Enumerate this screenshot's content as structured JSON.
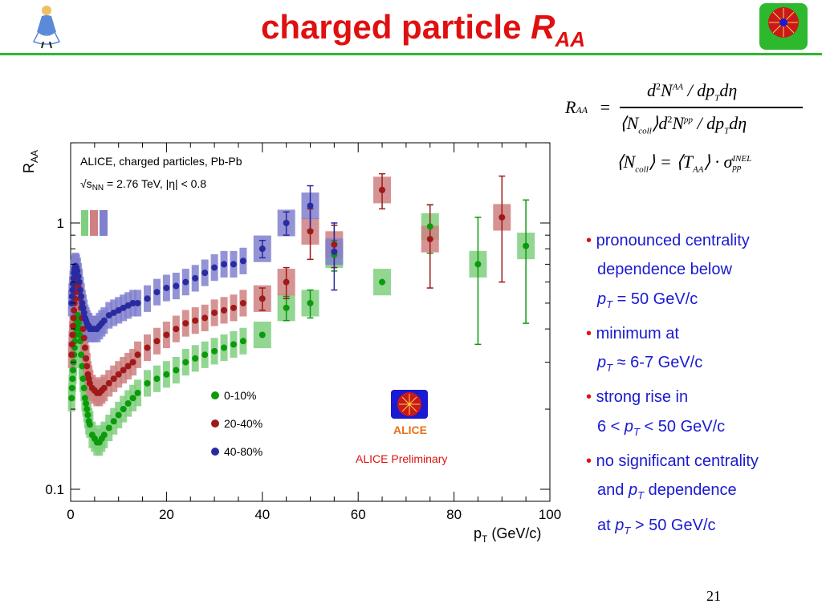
{
  "slide": {
    "title_main": "charged particle ",
    "title_r": "R",
    "title_sub": "AA",
    "page_number": "21"
  },
  "formula": {
    "lhs_R": "R",
    "lhs_sub": "AA",
    "eq": "=",
    "num_d": "d",
    "num_sup2": "2",
    "num_N": "N",
    "num_supAA": "AA",
    "num_rest": "/ dp",
    "num_subT": "T",
    "num_end": "dη",
    "den_open": "⟨N",
    "den_subcoll": "coll",
    "den_close": "⟩d",
    "den_sup2": "2",
    "den_N": "N",
    "den_suppp": "pp",
    "den_rest": "/ dp",
    "den_subT": "T",
    "den_end": "dη",
    "ncoll_open": "⟨N",
    "ncoll_sub": "coll",
    "ncoll_mid": "⟩ = ⟨T",
    "taa_sub": "AA",
    "taa_end": "⟩ · σ",
    "sigma_sup": "INEL",
    "sigma_sub": "pp"
  },
  "bullets": [
    {
      "bullet": "•",
      "text": " pronounced centrality"
    },
    {
      "indent": "dependence below"
    },
    {
      "indent_p": "p",
      "indent_sub": "T",
      "indent_rest": " = 50 GeV/c"
    },
    {
      "bullet": "•",
      "text": " minimum at"
    },
    {
      "indent_p": "p",
      "indent_sub": "T",
      "indent_rest": " ≈ 6-7 GeV/c"
    },
    {
      "bullet": "•",
      "text": " strong rise in"
    },
    {
      "indent_pre": "6 < ",
      "indent_p": "p",
      "indent_sub": "T",
      "indent_rest": " < 50 GeV/c"
    },
    {
      "bullet": "•",
      "text": " no significant centrality"
    },
    {
      "indent_pre": "and ",
      "indent_p": "p",
      "indent_sub": "T",
      "indent_rest": " dependence"
    },
    {
      "indent_pre": "at ",
      "indent_p": "p",
      "indent_sub": "T",
      "indent_rest": " > 50 GeV/c"
    }
  ],
  "chart_data": {
    "type": "scatter",
    "yscale": "log",
    "xlim": [
      0,
      100
    ],
    "ylim": [
      0.1,
      2.0
    ],
    "grid": false,
    "legend_position": "bottom-center",
    "xlabel": "p",
    "xlabel_sub": "T",
    "xlabel_unit": " (GeV/c)",
    "ylabel": "R",
    "ylabel_sub": "AA",
    "header_line1": "ALICE, charged particles, Pb-Pb",
    "header_line2_s": "√s",
    "header_line2_sub": "NN",
    "header_line2_rest": " = 2.76 TeV, |η| < 0.8",
    "preliminary": "ALICE Preliminary",
    "logo_text": "ALICE",
    "xticks": [
      "0",
      "20",
      "40",
      "60",
      "80",
      "100"
    ],
    "yticks": [
      "0.1",
      "1"
    ],
    "series": [
      {
        "name": "0-10%",
        "color": "#0a9a0a",
        "band": "#7fcf7f",
        "x": [
          0.2,
          0.3,
          0.4,
          0.5,
          0.6,
          0.7,
          0.8,
          0.9,
          1.0,
          1.1,
          1.2,
          1.3,
          1.4,
          1.5,
          1.6,
          1.7,
          1.8,
          1.9,
          2.0,
          2.2,
          2.4,
          2.6,
          2.8,
          3.0,
          3.2,
          3.4,
          3.6,
          3.8,
          4.0,
          4.5,
          5.0,
          5.5,
          6.0,
          6.5,
          7.0,
          8.0,
          9.0,
          10,
          11,
          12,
          13,
          14,
          16,
          18,
          20,
          22,
          24,
          26,
          28,
          30,
          32,
          34,
          36,
          40,
          45,
          50,
          55,
          65,
          75,
          85,
          95
        ],
        "y": [
          0.22,
          0.24,
          0.26,
          0.28,
          0.3,
          0.32,
          0.34,
          0.36,
          0.38,
          0.4,
          0.42,
          0.44,
          0.45,
          0.45,
          0.44,
          0.42,
          0.4,
          0.38,
          0.36,
          0.32,
          0.29,
          0.26,
          0.24,
          0.22,
          0.21,
          0.2,
          0.19,
          0.18,
          0.175,
          0.16,
          0.155,
          0.15,
          0.15,
          0.155,
          0.16,
          0.17,
          0.18,
          0.19,
          0.2,
          0.21,
          0.22,
          0.23,
          0.25,
          0.26,
          0.27,
          0.28,
          0.3,
          0.31,
          0.32,
          0.33,
          0.34,
          0.35,
          0.36,
          0.38,
          0.48,
          0.5,
          0.76,
          0.6,
          0.97,
          0.7,
          0.82
        ],
        "err": [
          0,
          0,
          0,
          0,
          0,
          0,
          0,
          0,
          0,
          0,
          0,
          0,
          0,
          0,
          0,
          0,
          0,
          0,
          0,
          0,
          0,
          0,
          0,
          0,
          0,
          0,
          0,
          0,
          0,
          0,
          0,
          0,
          0,
          0,
          0,
          0,
          0,
          0,
          0,
          0,
          0,
          0,
          0,
          0,
          0,
          0,
          0,
          0,
          0,
          0,
          0,
          0,
          0,
          0,
          0.05,
          0.06,
          0.1,
          0,
          0.2,
          0.35,
          0.4
        ]
      },
      {
        "name": "20-40%",
        "color": "#9e1a1a",
        "band": "#cf8080",
        "x": [
          0.2,
          0.3,
          0.4,
          0.5,
          0.6,
          0.7,
          0.8,
          0.9,
          1.0,
          1.2,
          1.4,
          1.6,
          1.8,
          2.0,
          2.2,
          2.4,
          2.6,
          2.8,
          3.0,
          3.2,
          3.4,
          3.6,
          3.8,
          4.0,
          4.5,
          5.0,
          5.5,
          6.0,
          6.5,
          7.0,
          8.0,
          9.0,
          10,
          11,
          12,
          13,
          14,
          16,
          18,
          20,
          22,
          24,
          26,
          28,
          30,
          32,
          34,
          36,
          40,
          45,
          50,
          55,
          65,
          75,
          90
        ],
        "y": [
          0.32,
          0.35,
          0.38,
          0.41,
          0.44,
          0.47,
          0.5,
          0.52,
          0.55,
          0.58,
          0.6,
          0.58,
          0.55,
          0.52,
          0.48,
          0.44,
          0.4,
          0.37,
          0.34,
          0.31,
          0.29,
          0.27,
          0.26,
          0.25,
          0.24,
          0.235,
          0.23,
          0.23,
          0.235,
          0.24,
          0.25,
          0.26,
          0.27,
          0.28,
          0.29,
          0.3,
          0.32,
          0.34,
          0.36,
          0.38,
          0.4,
          0.42,
          0.43,
          0.44,
          0.46,
          0.47,
          0.48,
          0.5,
          0.52,
          0.6,
          0.93,
          0.83,
          1.33,
          0.87,
          1.05
        ],
        "err": [
          0,
          0,
          0,
          0,
          0,
          0,
          0,
          0,
          0,
          0,
          0,
          0,
          0,
          0,
          0,
          0,
          0,
          0,
          0,
          0,
          0,
          0,
          0,
          0,
          0,
          0,
          0,
          0,
          0,
          0,
          0,
          0,
          0,
          0,
          0,
          0,
          0,
          0,
          0,
          0,
          0,
          0,
          0,
          0,
          0,
          0,
          0,
          0,
          0.05,
          0.08,
          0.2,
          0.15,
          0.2,
          0.3,
          0.45
        ]
      },
      {
        "name": "40-80%",
        "color": "#2a2aa0",
        "band": "#8080cf",
        "x": [
          0.2,
          0.3,
          0.4,
          0.5,
          0.6,
          0.7,
          0.8,
          0.9,
          1.0,
          1.2,
          1.4,
          1.6,
          1.8,
          2.0,
          2.2,
          2.4,
          2.6,
          2.8,
          3.0,
          3.2,
          3.4,
          3.6,
          3.8,
          4.0,
          4.5,
          5.0,
          5.5,
          6.0,
          6.5,
          7.0,
          8.0,
          9.0,
          10,
          11,
          12,
          13,
          14,
          16,
          18,
          20,
          22,
          24,
          26,
          28,
          30,
          32,
          34,
          36,
          40,
          45,
          50,
          55
        ],
        "y": [
          0.5,
          0.53,
          0.56,
          0.59,
          0.62,
          0.65,
          0.67,
          0.68,
          0.69,
          0.68,
          0.66,
          0.63,
          0.6,
          0.56,
          0.53,
          0.5,
          0.48,
          0.46,
          0.44,
          0.43,
          0.42,
          0.41,
          0.41,
          0.4,
          0.4,
          0.4,
          0.4,
          0.41,
          0.42,
          0.43,
          0.45,
          0.46,
          0.47,
          0.48,
          0.49,
          0.5,
          0.5,
          0.52,
          0.55,
          0.57,
          0.58,
          0.6,
          0.62,
          0.65,
          0.68,
          0.7,
          0.7,
          0.72,
          0.8,
          1.0,
          1.16,
          0.78
        ],
        "err": [
          0,
          0,
          0,
          0,
          0,
          0,
          0,
          0,
          0,
          0,
          0,
          0,
          0,
          0,
          0,
          0,
          0,
          0,
          0,
          0,
          0,
          0,
          0,
          0,
          0,
          0,
          0,
          0,
          0,
          0,
          0,
          0,
          0,
          0,
          0,
          0,
          0,
          0,
          0,
          0,
          0,
          0,
          0,
          0,
          0,
          0,
          0,
          0,
          0.06,
          0.1,
          0.22,
          0.22
        ]
      }
    ]
  }
}
